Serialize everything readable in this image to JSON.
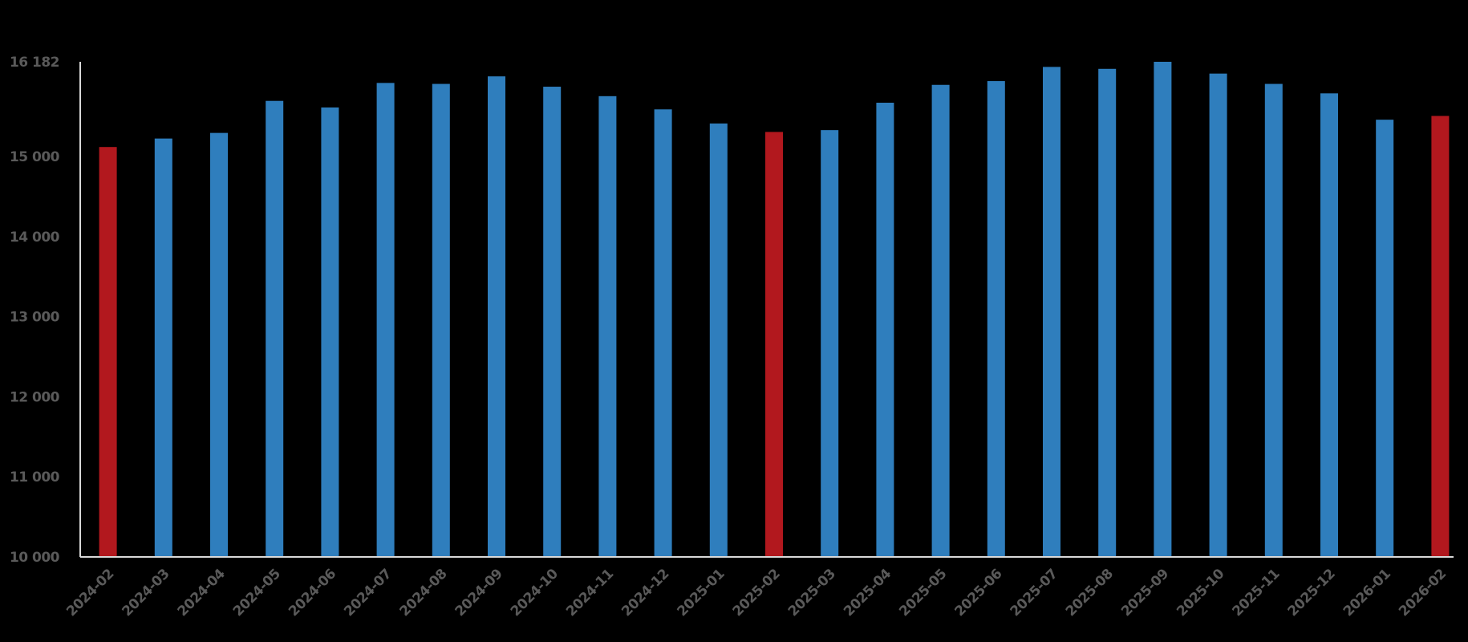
{
  "chart_data": {
    "type": "bar",
    "title": "",
    "xlabel": "",
    "ylabel": "",
    "ylim": [
      10000,
      16182
    ],
    "yticks": [
      10000,
      11000,
      12000,
      13000,
      14000,
      15000,
      16182
    ],
    "ytick_labels": [
      "10 000",
      "11 000",
      "12 000",
      "13 000",
      "14 000",
      "15 000",
      "16 182"
    ],
    "grid": false,
    "legend": "none",
    "colors": {
      "default": "#2f7ebd",
      "highlight": "#b2181e",
      "axis": "#d9d9d9",
      "tick_text": "#5a5a5a"
    },
    "categories": [
      "2024-02",
      "2024-03",
      "2024-04",
      "2024-05",
      "2024-06",
      "2024-07",
      "2024-08",
      "2024-09",
      "2024-10",
      "2024-11",
      "2024-12",
      "2025-01",
      "2025-02",
      "2025-03",
      "2025-04",
      "2025-05",
      "2025-06",
      "2025-07",
      "2025-08",
      "2025-09",
      "2025-10",
      "2025-11",
      "2025-12",
      "2026-01",
      "2026-02"
    ],
    "values": [
      15118,
      15224,
      15294,
      15694,
      15612,
      15918,
      15906,
      16000,
      15871,
      15753,
      15588,
      15412,
      15306,
      15329,
      15671,
      15894,
      15941,
      16118,
      16094,
      16182,
      16035,
      15906,
      15788,
      15459,
      15506
    ],
    "highlighted": [
      "2024-02",
      "2025-02",
      "2026-02"
    ]
  }
}
